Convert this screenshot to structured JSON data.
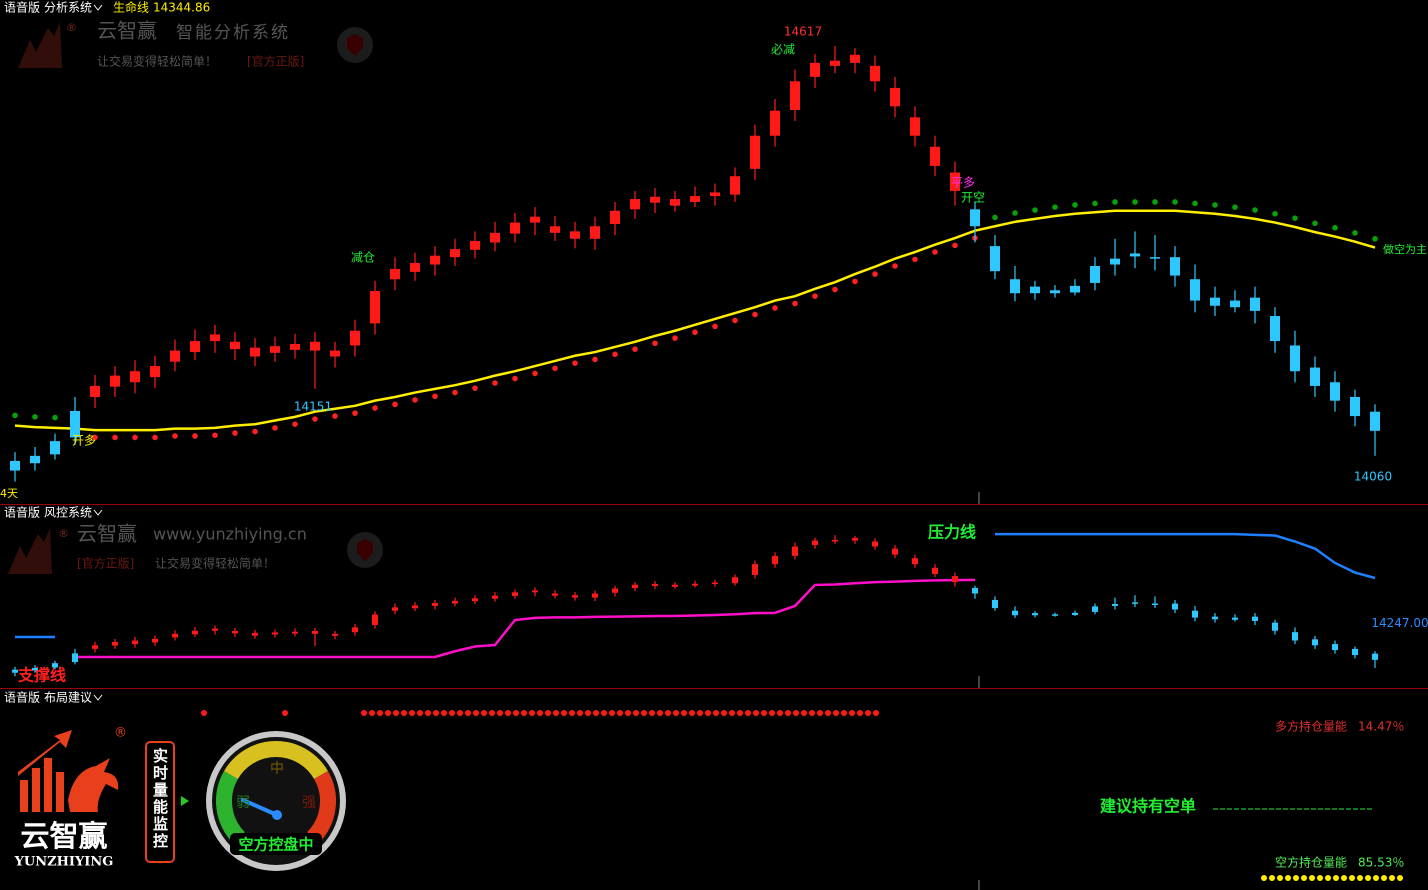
{
  "header": {
    "edition": "语音版",
    "system": "分析系统",
    "indicator": "生命线",
    "indicator_value": 14344.86
  },
  "watermark": {
    "brand": "云智赢",
    "slogan": "智能分析系统",
    "tagline": "让交易变得轻松简单！",
    "official": "[官方正版]",
    "website": "www.yunzhiying.cn",
    "mark": "®"
  },
  "chart_data": {
    "type": "candlestick",
    "ylim": [
      14000,
      14655
    ],
    "series": [
      {
        "color": "#2ec8ff",
        "open": [
          14040,
          14050,
          14062,
          14085
        ],
        "high": [
          14065,
          14072,
          14090,
          14140
        ],
        "low": [
          14025,
          14040,
          14055,
          14075
        ],
        "close": [
          14053,
          14060,
          14080,
          14121
        ]
      },
      {
        "color": "#ff1a1a",
        "open": [
          14140,
          14154,
          14160,
          14167,
          14188,
          14201,
          14225,
          14215,
          14195,
          14200,
          14204,
          14215,
          14195,
          14210,
          14240,
          14300,
          14310,
          14320,
          14330,
          14340,
          14350,
          14362,
          14385,
          14372,
          14365,
          14355,
          14375,
          14395,
          14412,
          14400,
          14405,
          14418,
          14415,
          14450,
          14495,
          14530,
          14575,
          14590,
          14605,
          14590,
          14560,
          14520,
          14480,
          14445
        ],
        "high": [
          14170,
          14182,
          14190,
          14196,
          14218,
          14232,
          14238,
          14228,
          14220,
          14222,
          14226,
          14228,
          14215,
          14245,
          14298,
          14330,
          14336,
          14345,
          14355,
          14365,
          14378,
          14390,
          14398,
          14386,
          14378,
          14385,
          14405,
          14420,
          14424,
          14420,
          14426,
          14430,
          14452,
          14510,
          14545,
          14585,
          14606,
          14617,
          14614,
          14604,
          14575,
          14535,
          14495,
          14460
        ],
        "low": [
          14125,
          14140,
          14145,
          14152,
          14175,
          14190,
          14200,
          14190,
          14182,
          14188,
          14192,
          14151,
          14180,
          14195,
          14225,
          14285,
          14298,
          14305,
          14318,
          14328,
          14338,
          14350,
          14360,
          14352,
          14342,
          14340,
          14360,
          14382,
          14390,
          14392,
          14398,
          14400,
          14405,
          14435,
          14480,
          14515,
          14560,
          14580,
          14580,
          14555,
          14520,
          14480,
          14440,
          14400
        ],
        "close": [
          14155,
          14169,
          14175,
          14182,
          14203,
          14216,
          14216,
          14205,
          14207,
          14209,
          14212,
          14203,
          14203,
          14230,
          14284,
          14314,
          14322,
          14332,
          14341,
          14352,
          14363,
          14377,
          14377,
          14363,
          14355,
          14372,
          14393,
          14409,
          14404,
          14409,
          14413,
          14413,
          14440,
          14495,
          14529,
          14569,
          14594,
          14597,
          14594,
          14569,
          14535,
          14495,
          14454,
          14420
        ]
      },
      {
        "color": "#2ec8ff",
        "open": [
          14395,
          14345,
          14300,
          14290,
          14285,
          14282,
          14295,
          14320,
          14335,
          14330,
          14330,
          14300,
          14275,
          14262,
          14275,
          14250,
          14210,
          14180,
          14160,
          14140,
          14120
        ],
        "high": [
          14405,
          14360,
          14318,
          14298,
          14292,
          14300,
          14330,
          14355,
          14365,
          14360,
          14345,
          14320,
          14290,
          14285,
          14290,
          14262,
          14230,
          14195,
          14175,
          14150,
          14130
        ],
        "low": [
          14350,
          14300,
          14270,
          14272,
          14275,
          14278,
          14285,
          14305,
          14315,
          14312,
          14290,
          14255,
          14250,
          14255,
          14240,
          14200,
          14160,
          14140,
          14120,
          14100,
          14060
        ],
        "close": [
          14372,
          14311,
          14281,
          14281,
          14281,
          14291,
          14318,
          14328,
          14331,
          14328,
          14305,
          14271,
          14264,
          14271,
          14257,
          14216,
          14175,
          14155,
          14135,
          14114,
          14094
        ]
      }
    ],
    "lines": [
      {
        "color": "#ffee00",
        "values": [
          14101,
          14099,
          14098,
          14097,
          14095,
          14095,
          14095,
          14095,
          14097,
          14097,
          14098,
          14101,
          14103,
          14108,
          14113,
          14120,
          14124,
          14128,
          14135,
          14140,
          14146,
          14151,
          14156,
          14162,
          14169,
          14175,
          14182,
          14189,
          14196,
          14201,
          14208,
          14215,
          14223,
          14230,
          14238,
          14246,
          14254,
          14262,
          14271,
          14277,
          14287,
          14296,
          14307,
          14317,
          14328,
          14337,
          14347,
          14356,
          14366,
          14372,
          14378,
          14382,
          14386,
          14389,
          14391,
          14393,
          14393,
          14393,
          14393,
          14391,
          14389,
          14386,
          14382,
          14377,
          14371,
          14364,
          14358,
          14351,
          14343
        ]
      }
    ],
    "dots": [
      {
        "color": "#ff2020",
        "values": [
          null,
          null,
          null,
          null,
          14085,
          14085,
          14085,
          14085,
          14087,
          14087,
          14088,
          14091,
          14093,
          14098,
          14103,
          14110,
          14114,
          14118,
          14125,
          14130,
          14136,
          14141,
          14146,
          14152,
          14159,
          14165,
          14172,
          14179,
          14186,
          14191,
          14198,
          14205,
          14213,
          14220,
          14228,
          14236,
          14244,
          14252,
          14261,
          14267,
          14277,
          14286,
          14297,
          14307,
          14318,
          14327,
          14337,
          14346,
          14356,
          null,
          null,
          null,
          null,
          null,
          null,
          null,
          null,
          null,
          null,
          null,
          null,
          null,
          null,
          null,
          null,
          null,
          null,
          null,
          null
        ]
      },
      {
        "color": "#0aa00a",
        "values": [
          14115,
          14113,
          14112,
          14111,
          null,
          null,
          null,
          null,
          null,
          null,
          null,
          null,
          null,
          null,
          null,
          null,
          null,
          null,
          null,
          null,
          null,
          null,
          null,
          null,
          null,
          null,
          null,
          null,
          null,
          null,
          null,
          null,
          null,
          null,
          null,
          null,
          null,
          null,
          null,
          null,
          null,
          null,
          null,
          null,
          null,
          null,
          null,
          null,
          null,
          14384,
          14390,
          14394,
          14398,
          14401,
          14403,
          14405,
          14405,
          14405,
          14405,
          14403,
          14401,
          14398,
          14394,
          14389,
          14383,
          14376,
          14370,
          14363,
          14355
        ]
      }
    ],
    "price_labels": [
      14617,
      14151,
      14060
    ],
    "signals": [
      "必减",
      "减仓",
      "开多",
      "平多",
      "开空",
      "做空为主",
      "4天"
    ],
    "risk": {
      "header": {
        "edition": "语音版",
        "system": "风控系统"
      },
      "ylim": [
        13976,
        14743
      ],
      "support": {
        "name": "支撑线",
        "color": "#ff10c8",
        "values": [
          null,
          null,
          null,
          14106,
          14106,
          14106,
          14106,
          14106,
          14106,
          14106,
          14106,
          14106,
          14106,
          14106,
          14106,
          14106,
          14106,
          14106,
          14106,
          14106,
          14106,
          14106,
          14130,
          14150,
          14156,
          14261,
          14270,
          14272,
          14272,
          14274,
          14275,
          14276,
          14278,
          14278,
          14280,
          14282,
          14285,
          14290,
          14291,
          14320,
          14408,
          14410,
          14415,
          14420,
          14422,
          14425,
          14427,
          14428,
          14429,
          null,
          null,
          null,
          null,
          null,
          null,
          null,
          null,
          null,
          null,
          null,
          null,
          null,
          null,
          null,
          null,
          null,
          null,
          null,
          null
        ]
      },
      "pressure": {
        "name": "压力线",
        "color": "#1e80ff",
        "values": [
          14190,
          14190,
          14190,
          null,
          null,
          null,
          null,
          null,
          null,
          null,
          null,
          null,
          null,
          null,
          null,
          null,
          null,
          null,
          null,
          null,
          null,
          null,
          null,
          null,
          null,
          null,
          null,
          null,
          null,
          null,
          null,
          null,
          null,
          null,
          null,
          null,
          null,
          null,
          null,
          null,
          null,
          null,
          null,
          null,
          null,
          null,
          null,
          null,
          null,
          14621,
          14621,
          14621,
          14621,
          14621,
          14621,
          14621,
          14621,
          14621,
          14621,
          14621,
          14621,
          14621,
          14618,
          14615,
          14590,
          14560,
          14500,
          14460,
          14437
        ]
      },
      "last_price": {
        "value": 14247,
        "label": "14247.00"
      }
    }
  },
  "advice": {
    "header": {
      "edition": "语音版",
      "system": "布局建议"
    },
    "logo": {
      "name": "云智赢",
      "latin": "YUNZHIYING"
    },
    "monitor": "实时量能监控",
    "gauge": {
      "mid": "中",
      "weak": "弱",
      "strong": "强",
      "status": "空方控盘中"
    },
    "long_energy": {
      "label": "多方持仓量能",
      "value": "14.47％"
    },
    "suggestion": "建议持有空单",
    "short_energy": {
      "label": "空方持仓量能",
      "value": "85.53％"
    }
  }
}
